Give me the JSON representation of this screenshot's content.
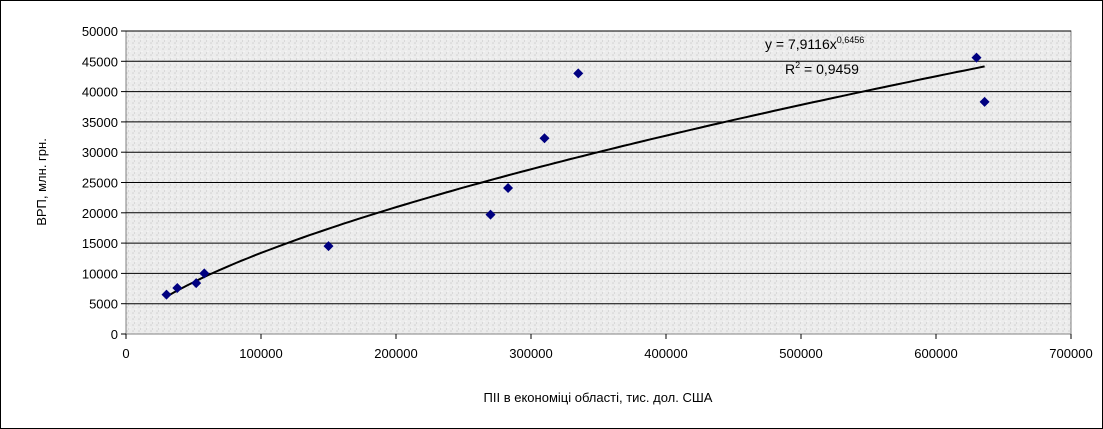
{
  "chart_data": {
    "type": "scatter",
    "title": "",
    "xlabel": "ПІІ в економіці області, тис. дол. США",
    "ylabel": "ВРП, млн. грн.",
    "xlim": [
      0,
      700000
    ],
    "ylim": [
      0,
      50000
    ],
    "x_ticks": [
      0,
      100000,
      200000,
      300000,
      400000,
      500000,
      600000,
      700000
    ],
    "y_ticks": [
      0,
      5000,
      10000,
      15000,
      20000,
      25000,
      30000,
      35000,
      40000,
      45000,
      50000
    ],
    "grid": "horizontal",
    "legend": "none",
    "marker": "diamond",
    "point_color": "#000080",
    "trendline_color": "#000000",
    "points": [
      {
        "x": 30000,
        "y": 6500
      },
      {
        "x": 38000,
        "y": 7600
      },
      {
        "x": 52000,
        "y": 8400
      },
      {
        "x": 58000,
        "y": 10000
      },
      {
        "x": 150000,
        "y": 14500
      },
      {
        "x": 270000,
        "y": 19700
      },
      {
        "x": 283000,
        "y": 24100
      },
      {
        "x": 310000,
        "y": 32300
      },
      {
        "x": 335000,
        "y": 43000
      },
      {
        "x": 630000,
        "y": 45600
      },
      {
        "x": 636000,
        "y": 38300
      }
    ],
    "trendline": {
      "type": "power",
      "coefficient": 7.9116,
      "exponent": 0.6456,
      "x_range": [
        30000,
        636000
      ],
      "equation_prefix": "y = 7,9116x",
      "equation_exponent": "0,6456",
      "r2_prefix": "R",
      "r2_sup": "2",
      "r2_value": " = 0,9459"
    }
  }
}
